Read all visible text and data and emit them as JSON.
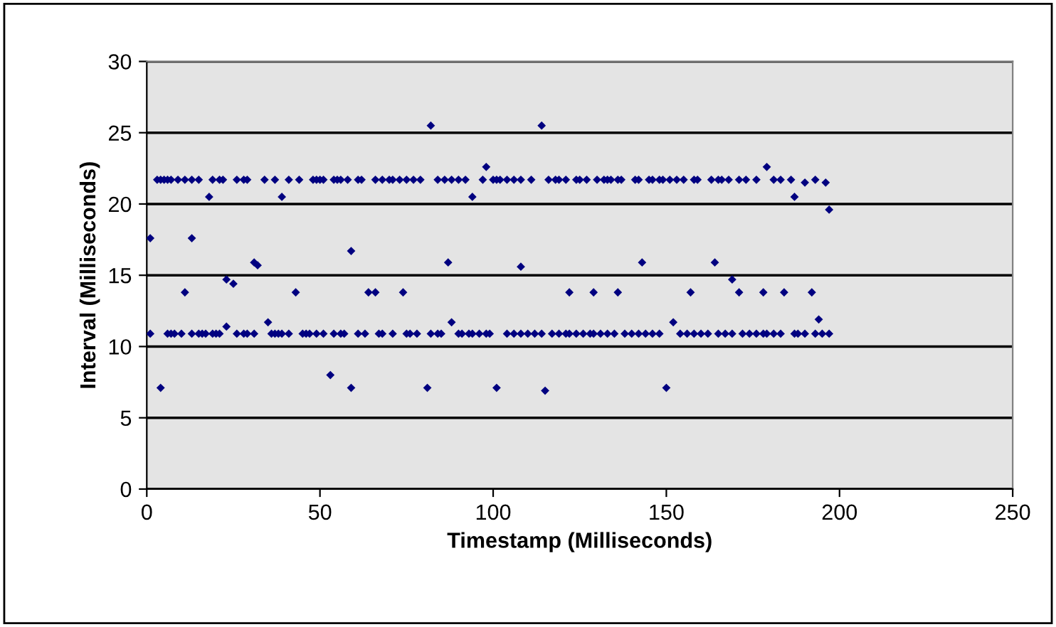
{
  "chart_data": {
    "type": "scatter",
    "xlabel": "Timestamp (Milliseconds)",
    "ylabel": "Interval (Milliseconds)",
    "xlim": [
      0,
      250
    ],
    "xticks": [
      0,
      50,
      100,
      150,
      200,
      250
    ],
    "ylim": [
      0,
      30
    ],
    "yticks": [
      0,
      5,
      10,
      15,
      20,
      25,
      30
    ],
    "grid": "y",
    "marker": "diamond",
    "series": [
      {
        "color": "#000080",
        "x": [
          3,
          4,
          5,
          6,
          7,
          9,
          11,
          13,
          15,
          19,
          21,
          22,
          26,
          28,
          29,
          34,
          37,
          41,
          44,
          48,
          49,
          50,
          51,
          54,
          55,
          56,
          58,
          61,
          62,
          66,
          68,
          70,
          71,
          73,
          75,
          77,
          79,
          84,
          86,
          88,
          90,
          92,
          97,
          100,
          101,
          102,
          104,
          106,
          108,
          111,
          116,
          118,
          119,
          121,
          124,
          125,
          127,
          130,
          132,
          133,
          134,
          136,
          137,
          141,
          142,
          145,
          146,
          148,
          149,
          151,
          153,
          155,
          158,
          159,
          163,
          165,
          166,
          168,
          171,
          173,
          176,
          181,
          183,
          186,
          190,
          193,
          196
        ],
        "values": [
          21.7,
          21.7,
          21.7,
          21.7,
          21.7,
          21.7,
          21.7,
          21.7,
          21.7,
          21.7,
          21.7,
          21.7,
          21.7,
          21.7,
          21.7,
          21.7,
          21.7,
          21.7,
          21.7,
          21.7,
          21.7,
          21.7,
          21.7,
          21.7,
          21.7,
          21.7,
          21.7,
          21.7,
          21.7,
          21.7,
          21.7,
          21.7,
          21.7,
          21.7,
          21.7,
          21.7,
          21.7,
          21.7,
          21.7,
          21.7,
          21.7,
          21.7,
          21.7,
          21.7,
          21.7,
          21.7,
          21.7,
          21.7,
          21.7,
          21.7,
          21.7,
          21.7,
          21.7,
          21.7,
          21.7,
          21.7,
          21.7,
          21.7,
          21.7,
          21.7,
          21.7,
          21.7,
          21.7,
          21.7,
          21.7,
          21.7,
          21.7,
          21.7,
          21.7,
          21.7,
          21.7,
          21.7,
          21.7,
          21.7,
          21.7,
          21.7,
          21.7,
          21.7,
          21.7,
          21.7,
          21.7,
          21.7,
          21.7,
          21.7,
          21.5,
          21.7,
          21.5
        ]
      },
      {
        "color": "#000080",
        "x": [
          1,
          6,
          7,
          8,
          10,
          13,
          15,
          16,
          17,
          19,
          20,
          21,
          26,
          28,
          29,
          31,
          36,
          37,
          38,
          39,
          41,
          45,
          46,
          47,
          49,
          51,
          54,
          56,
          57,
          61,
          63,
          67,
          68,
          71,
          75,
          76,
          78,
          82,
          84,
          85,
          90,
          91,
          93,
          94,
          96,
          98,
          99,
          104,
          106,
          108,
          110,
          112,
          114,
          117,
          119,
          121,
          122,
          124,
          126,
          128,
          129,
          131,
          133,
          135,
          138,
          140,
          142,
          144,
          146,
          148,
          154,
          156,
          158,
          160,
          162,
          165,
          167,
          169,
          172,
          174,
          176,
          178,
          179,
          181,
          183,
          187,
          188,
          190,
          193,
          195,
          197
        ],
        "values": [
          10.9,
          10.9,
          10.9,
          10.9,
          10.9,
          10.9,
          10.9,
          10.9,
          10.9,
          10.9,
          10.9,
          10.9,
          10.9,
          10.9,
          10.9,
          10.9,
          10.9,
          10.9,
          10.9,
          10.9,
          10.9,
          10.9,
          10.9,
          10.9,
          10.9,
          10.9,
          10.9,
          10.9,
          10.9,
          10.9,
          10.9,
          10.9,
          10.9,
          10.9,
          10.9,
          10.9,
          10.9,
          10.9,
          10.9,
          10.9,
          10.9,
          10.9,
          10.9,
          10.9,
          10.9,
          10.9,
          10.9,
          10.9,
          10.9,
          10.9,
          10.9,
          10.9,
          10.9,
          10.9,
          10.9,
          10.9,
          10.9,
          10.9,
          10.9,
          10.9,
          10.9,
          10.9,
          10.9,
          10.9,
          10.9,
          10.9,
          10.9,
          10.9,
          10.9,
          10.9,
          10.9,
          10.9,
          10.9,
          10.9,
          10.9,
          10.9,
          10.9,
          10.9,
          10.9,
          10.9,
          10.9,
          10.9,
          10.9,
          10.9,
          10.9,
          10.9,
          10.9,
          10.9,
          10.9,
          10.9,
          10.9
        ]
      },
      {
        "color": "#000080",
        "x": [
          1,
          4,
          11,
          13,
          18,
          23,
          23,
          25,
          31,
          32,
          35,
          39,
          43,
          53,
          59,
          59,
          64,
          66,
          74,
          81,
          82,
          87,
          88,
          94,
          98,
          101,
          108,
          114,
          115,
          122,
          129,
          136,
          143,
          150,
          152,
          157,
          164,
          169,
          171,
          178,
          179,
          184,
          187,
          192,
          194,
          197
        ],
        "values": [
          17.6,
          7.1,
          13.8,
          17.6,
          20.5,
          11.4,
          14.7,
          14.4,
          15.9,
          15.7,
          11.7,
          20.5,
          13.8,
          8.0,
          16.7,
          7.1,
          13.8,
          13.8,
          13.8,
          7.1,
          25.5,
          15.9,
          11.7,
          20.5,
          22.6,
          7.1,
          15.6,
          25.5,
          6.9,
          13.8,
          13.8,
          13.8,
          15.9,
          7.1,
          11.7,
          13.8,
          15.9,
          14.7,
          13.8,
          13.8,
          22.6,
          13.8,
          20.5,
          13.8,
          11.9,
          19.6
        ]
      }
    ]
  }
}
